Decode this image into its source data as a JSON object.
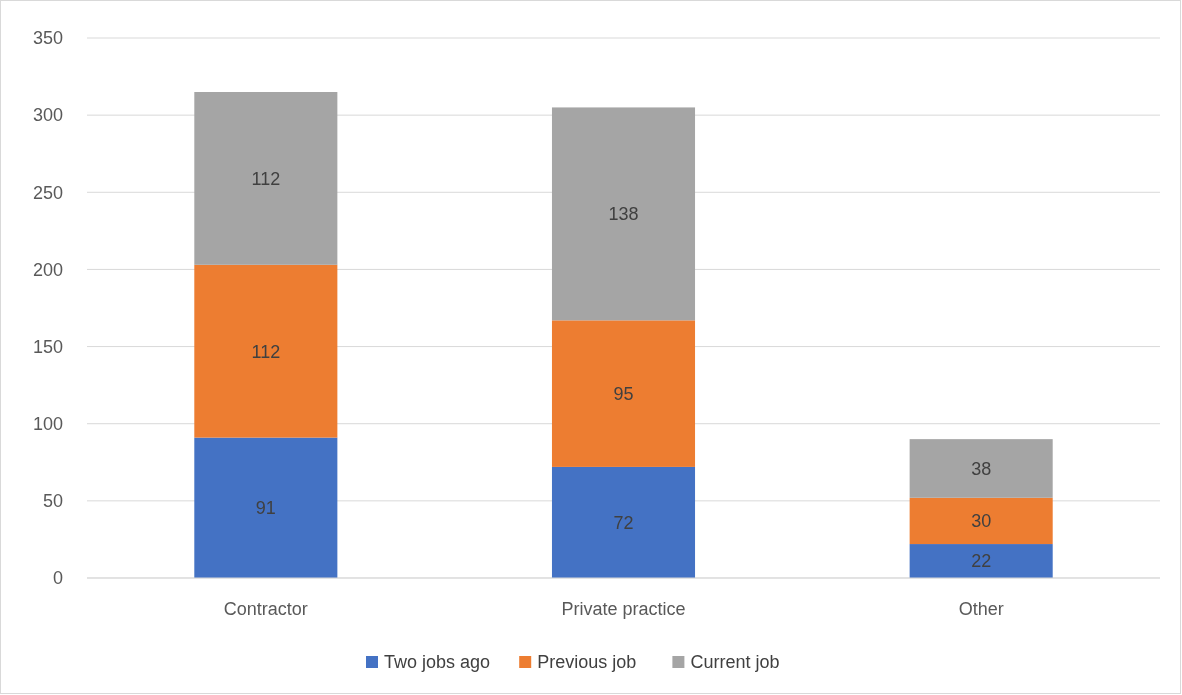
{
  "chart_data": {
    "type": "bar",
    "stacked": true,
    "categories": [
      "Contractor",
      "Private practice",
      "Other"
    ],
    "series": [
      {
        "name": "Two jobs ago",
        "color": "#4472c4",
        "values": [
          91,
          72,
          22
        ]
      },
      {
        "name": "Previous job",
        "color": "#ed7d31",
        "values": [
          112,
          95,
          30
        ]
      },
      {
        "name": "Current job",
        "color": "#a5a5a5",
        "values": [
          112,
          138,
          38
        ]
      }
    ],
    "ylim": [
      0,
      350
    ],
    "yticks": [
      0,
      50,
      100,
      150,
      200,
      250,
      300,
      350
    ],
    "grid": "y",
    "legend": "bottom",
    "data_labels": true
  }
}
